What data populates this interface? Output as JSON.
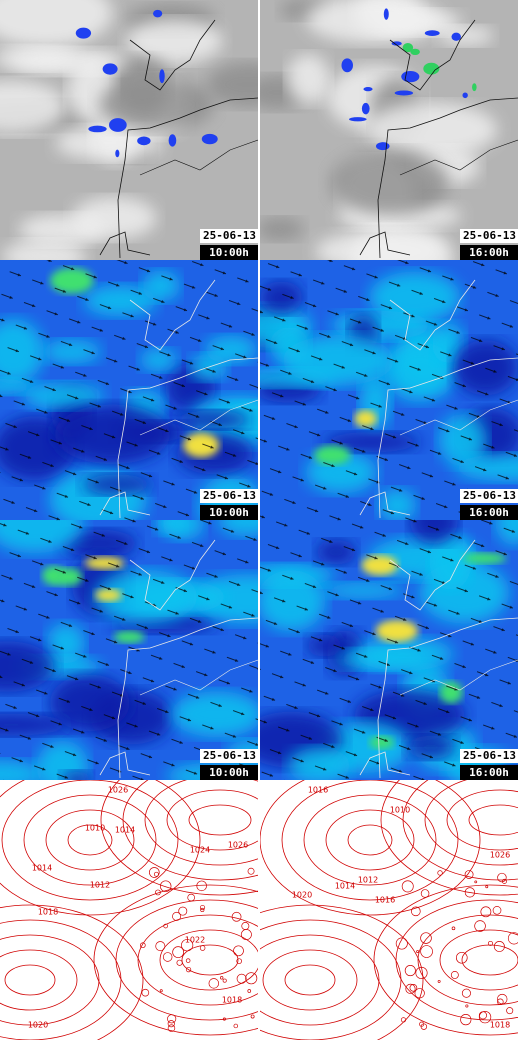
{
  "labeled_panels": [
    {
      "date": "25-06-13",
      "time": "10:00h"
    },
    {
      "date": "25-06-13",
      "time": "16:00h"
    },
    {
      "date": "25-06-13",
      "time": "10:00h"
    },
    {
      "date": "25-06-13",
      "time": "16:00h"
    },
    {
      "date": "25-06-13",
      "time": "10:00h"
    },
    {
      "date": "25-06-13",
      "time": "16:00h"
    }
  ],
  "contour_labels": {
    "left": [
      1026,
      1010,
      1014,
      1012,
      1014,
      1018,
      1024,
      1026,
      1022,
      1018,
      1020
    ],
    "right": [
      1016,
      1010,
      1012,
      1014,
      1016,
      1020,
      1026,
      1018
    ]
  }
}
